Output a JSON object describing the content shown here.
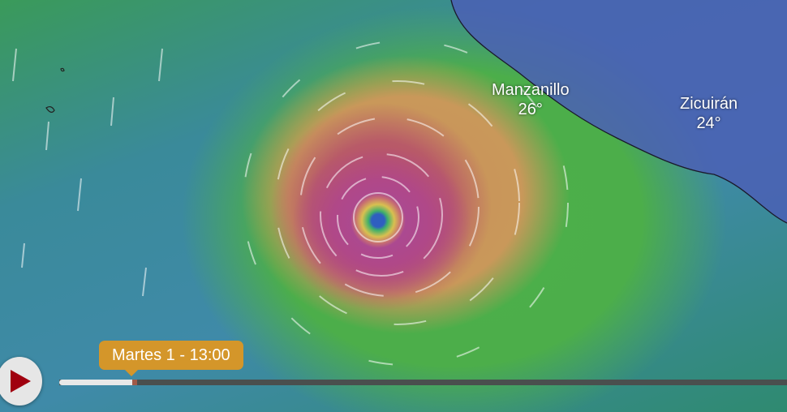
{
  "map": {
    "layer": "wind",
    "cities": [
      {
        "name": "Manzanillo",
        "temp": "26°"
      },
      {
        "name": "Zicuirán",
        "temp": "24°"
      }
    ]
  },
  "timeline": {
    "play_icon": "play-icon",
    "current_label": "Martes 1 - 13:00",
    "progress_percent": 10,
    "colors": {
      "accent": "#d4962a",
      "play": "#a0000f"
    }
  }
}
